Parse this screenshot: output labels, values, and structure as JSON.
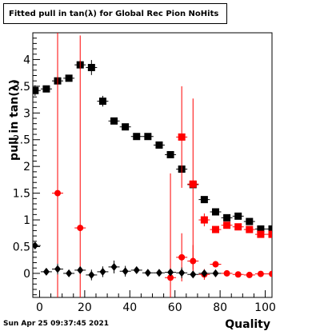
{
  "timestamp": "Sun Apr 25 09:37:45 2021",
  "chart_data": {
    "type": "scatter",
    "title": "Fitted pull in tan(λ) for Global Rec Pion NoHits",
    "xlabel": "Quality",
    "ylabel": "pull in tan(λ)",
    "xlim": [
      -3,
      103
    ],
    "ylim": [
      -0.45,
      4.5
    ],
    "xticks": [
      0,
      20,
      40,
      60,
      80,
      100
    ],
    "yticks": [
      0,
      0.5,
      1,
      1.5,
      2,
      2.5,
      3,
      3.5,
      4
    ],
    "grid": false,
    "legend": "none",
    "series": [
      {
        "color": "#000000",
        "marker": "square",
        "points": [
          {
            "x": -2,
            "y": 3.42,
            "err": 0.1
          },
          {
            "x": 3,
            "y": 3.45,
            "err": 0.06
          },
          {
            "x": 8,
            "y": 3.6,
            "err": 0.06
          },
          {
            "x": 13,
            "y": 3.65,
            "err": 0.06
          },
          {
            "x": 18,
            "y": 3.9,
            "err": 0.08
          },
          {
            "x": 23,
            "y": 3.85,
            "err": 0.14
          },
          {
            "x": 28,
            "y": 3.22,
            "err": 0.1
          },
          {
            "x": 33,
            "y": 2.85,
            "err": 0.06
          },
          {
            "x": 38,
            "y": 2.74,
            "err": 0.06
          },
          {
            "x": 43,
            "y": 2.56,
            "err": 0.04
          },
          {
            "x": 48,
            "y": 2.56,
            "err": 0.04
          },
          {
            "x": 53,
            "y": 2.4,
            "err": 0.04
          },
          {
            "x": 58,
            "y": 2.22,
            "err": 0.04
          },
          {
            "x": 63,
            "y": 1.95,
            "err": 0.04
          },
          {
            "x": 68,
            "y": 1.66,
            "err": 0.04
          },
          {
            "x": 73,
            "y": 1.38,
            "err": 0.04
          },
          {
            "x": 78,
            "y": 1.15,
            "err": 0.04
          },
          {
            "x": 83,
            "y": 1.04,
            "err": 0.04
          },
          {
            "x": 88,
            "y": 1.07,
            "err": 0.04
          },
          {
            "x": 93,
            "y": 0.97,
            "err": 0.04
          },
          {
            "x": 98,
            "y": 0.83,
            "err": 0.04
          },
          {
            "x": 103,
            "y": 0.83,
            "err": 0.04
          }
        ]
      },
      {
        "color": "#ff0000",
        "marker": "circle",
        "points": [
          {
            "x": 8,
            "y": 1.5,
            "err": 3.0
          },
          {
            "x": 18,
            "y": 0.85,
            "err": 3.6
          },
          {
            "x": 58,
            "y": -0.08,
            "err": 1.95
          }
        ]
      },
      {
        "color": "#ff0000",
        "marker": "square",
        "points": [
          {
            "x": 63,
            "y": 2.55,
            "err": 0.95
          },
          {
            "x": 68,
            "y": 1.67,
            "err": 1.6
          },
          {
            "x": 73,
            "y": 1.0,
            "err": 0.12
          },
          {
            "x": 78,
            "y": 0.82,
            "err": 0.06
          },
          {
            "x": 83,
            "y": 0.9,
            "err": 0.05
          },
          {
            "x": 88,
            "y": 0.87,
            "err": 0.04
          },
          {
            "x": 93,
            "y": 0.82,
            "err": 0.04
          },
          {
            "x": 98,
            "y": 0.73,
            "err": 0.04
          },
          {
            "x": 103,
            "y": 0.73,
            "err": 0.04
          }
        ]
      },
      {
        "color": "#ff0000",
        "marker": "circle",
        "points": [
          {
            "x": 63,
            "y": 0.3,
            "err": 0.45
          },
          {
            "x": 68,
            "y": 0.23,
            "err": 0.3
          },
          {
            "x": 73,
            "y": -0.02,
            "err": 0.1
          },
          {
            "x": 78,
            "y": 0.17,
            "err": 0.06
          },
          {
            "x": 83,
            "y": 0.0,
            "err": 0.04
          },
          {
            "x": 88,
            "y": -0.02,
            "err": 0.04
          },
          {
            "x": 93,
            "y": -0.03,
            "err": 0.04
          },
          {
            "x": 98,
            "y": -0.01,
            "err": 0.03
          },
          {
            "x": 103,
            "y": -0.01,
            "err": 0.03
          }
        ]
      },
      {
        "color": "#000000",
        "marker": "diamond",
        "points": [
          {
            "x": -2,
            "y": 0.52,
            "err": 0.06
          },
          {
            "x": 3,
            "y": 0.03,
            "err": 0.05
          },
          {
            "x": 8,
            "y": 0.08,
            "err": 0.1
          },
          {
            "x": 13,
            "y": 0.0,
            "err": 0.06
          },
          {
            "x": 18,
            "y": 0.06,
            "err": 0.06
          },
          {
            "x": 23,
            "y": -0.03,
            "err": 0.1
          },
          {
            "x": 28,
            "y": 0.03,
            "err": 0.1
          },
          {
            "x": 33,
            "y": 0.12,
            "err": 0.12
          },
          {
            "x": 38,
            "y": 0.04,
            "err": 0.1
          },
          {
            "x": 43,
            "y": 0.06,
            "err": 0.06
          },
          {
            "x": 48,
            "y": 0.01,
            "err": 0.04
          },
          {
            "x": 53,
            "y": 0.01,
            "err": 0.04
          },
          {
            "x": 58,
            "y": 0.02,
            "err": 0.06
          },
          {
            "x": 63,
            "y": 0.01,
            "err": 0.1
          },
          {
            "x": 68,
            "y": -0.02,
            "err": 0.05
          },
          {
            "x": 73,
            "y": 0.0,
            "err": 0.05
          },
          {
            "x": 78,
            "y": 0.0,
            "err": 0.04
          }
        ]
      }
    ]
  }
}
